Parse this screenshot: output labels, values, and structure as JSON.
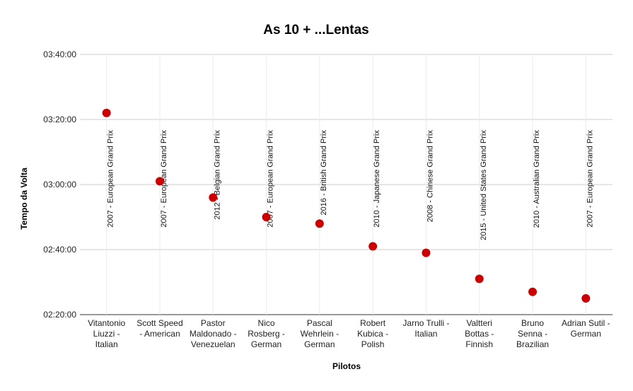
{
  "chart_data": {
    "type": "scatter",
    "title": "As 10 + ...Lentas",
    "xlabel": "Pilotos",
    "ylabel": "Tempo da Volta",
    "ylim": [
      "02:20:00",
      "03:40:00"
    ],
    "yticks": [
      "02:20:00",
      "02:40:00",
      "03:00:00",
      "03:20:00",
      "03:40:00"
    ],
    "grid": true,
    "point_color": "#cc0000",
    "categories": [
      [
        "Vitantonio",
        "Liuzzi -",
        "Italian"
      ],
      [
        "Scott Speed",
        "- American"
      ],
      [
        "Pastor",
        "Maldonado -",
        "Venezuelan"
      ],
      [
        "Nico",
        "Rosberg -",
        "German"
      ],
      [
        "Pascal",
        "Wehrlein -",
        "German"
      ],
      [
        "Robert",
        "Kubica -",
        "Polish"
      ],
      [
        "Jarno Trulli -",
        "Italian"
      ],
      [
        "Valtteri",
        "Bottas -",
        "Finnish"
      ],
      [
        "Bruno",
        "Senna -",
        "Brazilian"
      ],
      [
        "Adrian Sutil -",
        "German"
      ]
    ],
    "values": [
      "03:22:00",
      "03:01:00",
      "02:56:00",
      "02:50:00",
      "02:48:00",
      "02:41:00",
      "02:39:00",
      "02:31:00",
      "02:27:00",
      "02:25:00"
    ],
    "annotations": [
      "2007 - European Grand Prix",
      "2007 - European Grand Prix",
      "2012 - Belgian Grand Prix",
      "2007 - European Grand Prix",
      "2016 - British Grand Prix",
      "2010 - Japanese Grand Prix",
      "2008 - Chinese Grand Prix",
      "2015 - United States Grand Prix",
      "2010 - Australian Grand Prix",
      "2007 - European Grand Prix"
    ]
  }
}
